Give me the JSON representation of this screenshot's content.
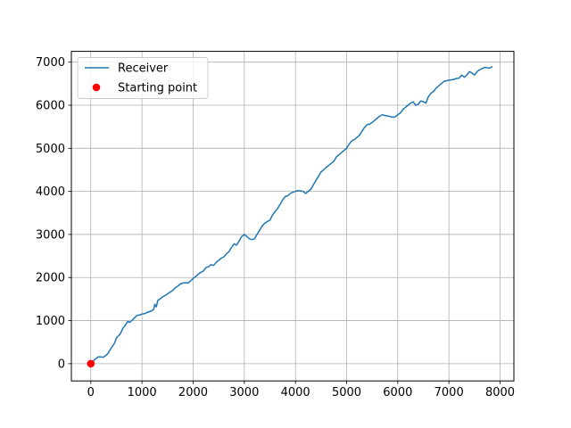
{
  "chart_data": {
    "type": "line",
    "title": "",
    "xlabel": "",
    "ylabel": "",
    "xlim": [
      -380,
      8270
    ],
    "ylim": [
      -400,
      7250
    ],
    "x_ticks": [
      0,
      1000,
      2000,
      3000,
      4000,
      5000,
      6000,
      7000,
      8000
    ],
    "y_ticks": [
      0,
      1000,
      2000,
      3000,
      4000,
      5000,
      6000,
      7000
    ],
    "x_tick_labels": [
      "0",
      "1000",
      "2000",
      "3000",
      "4000",
      "5000",
      "6000",
      "7000",
      "8000"
    ],
    "y_tick_labels": [
      "0",
      "1000",
      "2000",
      "3000",
      "4000",
      "5000",
      "6000",
      "7000"
    ],
    "grid": true,
    "legend_position": "upper-left",
    "series": [
      {
        "name": "Receiver",
        "kind": "line",
        "color": "#1f77b4",
        "x": [
          0,
          80,
          150,
          250,
          330,
          390,
          420,
          460,
          500,
          540,
          580,
          630,
          680,
          720,
          760,
          800,
          850,
          900,
          950,
          1000,
          1050,
          1100,
          1180,
          1230,
          1250,
          1280,
          1310,
          1350,
          1400,
          1450,
          1500,
          1600,
          1650,
          1700,
          1750,
          1800,
          1850,
          1900,
          1950,
          2000,
          2050,
          2100,
          2150,
          2200,
          2250,
          2300,
          2350,
          2400,
          2450,
          2500,
          2550,
          2600,
          2650,
          2700,
          2750,
          2800,
          2850,
          2900,
          2950,
          3000,
          3050,
          3100,
          3150,
          3200,
          3250,
          3300,
          3350,
          3400,
          3450,
          3500,
          3550,
          3600,
          3650,
          3700,
          3750,
          3800,
          3850,
          3900,
          3950,
          4000,
          4050,
          4100,
          4150,
          4200,
          4250,
          4300,
          4350,
          4400,
          4450,
          4500,
          4550,
          4600,
          4650,
          4700,
          4750,
          4800,
          4850,
          4900,
          5000,
          5050,
          5100,
          5150,
          5200,
          5250,
          5300,
          5350,
          5400,
          5450,
          5500,
          5550,
          5600,
          5650,
          5700,
          5750,
          5800,
          5850,
          5900,
          5950,
          6000,
          6050,
          6100,
          6150,
          6200,
          6250,
          6300,
          6350,
          6400,
          6450,
          6500,
          6550,
          6600,
          6650,
          6700,
          6750,
          6800,
          6850,
          6900,
          6950,
          7000,
          7050,
          7100,
          7150,
          7200,
          7250,
          7300,
          7350,
          7400,
          7450,
          7500,
          7550,
          7600,
          7650,
          7700,
          7750,
          7800,
          7850
        ],
        "y": [
          0,
          100,
          160,
          150,
          230,
          350,
          400,
          470,
          600,
          650,
          700,
          830,
          900,
          980,
          960,
          1000,
          1060,
          1120,
          1130,
          1150,
          1160,
          1190,
          1220,
          1260,
          1380,
          1320,
          1470,
          1500,
          1550,
          1580,
          1620,
          1700,
          1760,
          1800,
          1850,
          1870,
          1880,
          1870,
          1920,
          1980,
          2020,
          2080,
          2120,
          2150,
          2230,
          2250,
          2300,
          2280,
          2350,
          2400,
          2450,
          2480,
          2550,
          2600,
          2700,
          2780,
          2750,
          2850,
          2950,
          3000,
          2950,
          2900,
          2880,
          2900,
          3000,
          3100,
          3200,
          3260,
          3300,
          3330,
          3450,
          3530,
          3600,
          3700,
          3800,
          3880,
          3900,
          3950,
          3980,
          4000,
          4020,
          4010,
          4000,
          3950,
          4000,
          4050,
          4150,
          4250,
          4350,
          4450,
          4500,
          4560,
          4600,
          4650,
          4700,
          4800,
          4850,
          4900,
          5000,
          5100,
          5170,
          5200,
          5250,
          5300,
          5400,
          5480,
          5550,
          5560,
          5600,
          5650,
          5700,
          5750,
          5780,
          5760,
          5750,
          5740,
          5720,
          5730,
          5780,
          5820,
          5900,
          5950,
          6000,
          6050,
          6080,
          6000,
          6020,
          6100,
          6080,
          6050,
          6200,
          6280,
          6320,
          6400,
          6450,
          6500,
          6550,
          6570,
          6580,
          6590,
          6600,
          6620,
          6630,
          6700,
          6650,
          6700,
          6780,
          6750,
          6700,
          6780,
          6820,
          6850,
          6880,
          6870,
          6860,
          6900
        ]
      },
      {
        "name": "Starting point",
        "kind": "point",
        "color": "#ff0000",
        "x": [
          0
        ],
        "y": [
          0
        ]
      }
    ]
  }
}
